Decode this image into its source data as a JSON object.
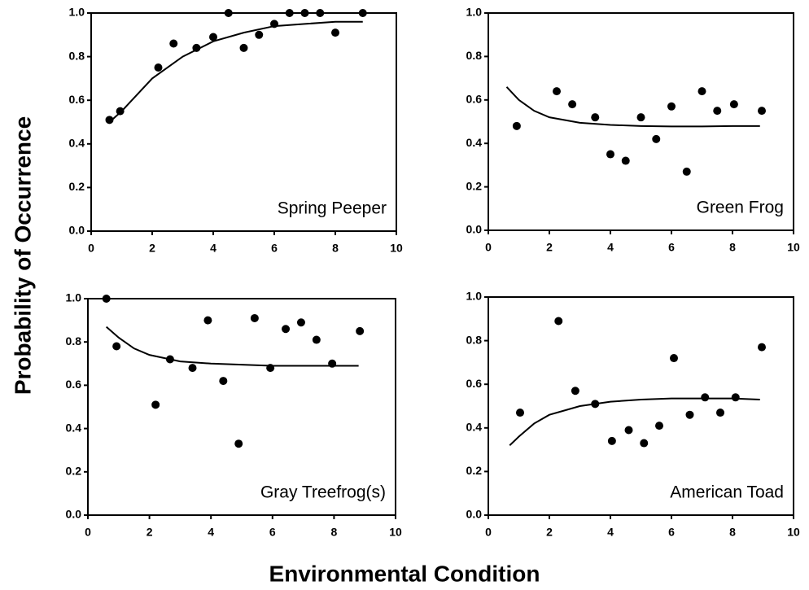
{
  "ylabel": "Probability of Occurrence",
  "xlabel": "Environmental Condition",
  "chart_data": [
    {
      "type": "scatter",
      "title": "Spring Peeper",
      "xlim": [
        0,
        10
      ],
      "ylim": [
        0,
        1
      ],
      "xticks": [
        0,
        2,
        4,
        6,
        8,
        10
      ],
      "yticks": [
        {
          "value": 0,
          "label": "0.0"
        },
        0.2,
        0.4,
        0.6,
        0.8,
        {
          "value": 1,
          "label": "1.0"
        }
      ],
      "series": [
        {
          "type": "scatter",
          "color": "#000000",
          "x": [
            0.6,
            0.95,
            2.2,
            2.7,
            3.45,
            4.0,
            4.5,
            5.0,
            5.5,
            6.0,
            6.5,
            7.0,
            7.5,
            8.0,
            8.9
          ],
          "values": [
            0.51,
            0.55,
            0.75,
            0.86,
            0.84,
            0.89,
            1.0,
            0.84,
            0.9,
            0.95,
            1.0,
            1.0,
            1.0,
            0.91,
            1.0
          ]
        },
        {
          "type": "line",
          "color": "#000000",
          "x": [
            0.6,
            1,
            2,
            3,
            4,
            5,
            6,
            7,
            8,
            8.9
          ],
          "values": [
            0.5,
            0.55,
            0.7,
            0.8,
            0.87,
            0.91,
            0.94,
            0.95,
            0.96,
            0.96
          ]
        }
      ]
    },
    {
      "type": "scatter",
      "title": "Green Frog",
      "xlim": [
        0,
        10
      ],
      "ylim": [
        0,
        1
      ],
      "xticks": [
        0,
        2,
        4,
        6,
        8,
        10
      ],
      "yticks": [
        {
          "value": 0,
          "label": "0.0"
        },
        0.2,
        0.4,
        0.6,
        0.8,
        {
          "value": 1,
          "label": "1.0"
        }
      ],
      "series": [
        {
          "type": "scatter",
          "color": "#000000",
          "x": [
            0.93,
            2.24,
            2.75,
            3.5,
            4.0,
            4.5,
            5.0,
            5.5,
            6.0,
            6.5,
            7.0,
            7.5,
            8.05,
            8.96
          ],
          "values": [
            0.48,
            0.64,
            0.58,
            0.52,
            0.35,
            0.32,
            0.52,
            0.42,
            0.57,
            0.27,
            0.64,
            0.55,
            0.58,
            0.55
          ]
        },
        {
          "type": "line",
          "color": "#000000",
          "x": [
            0.6,
            1,
            1.5,
            2,
            3,
            4,
            5,
            6,
            7,
            8,
            8.9
          ],
          "values": [
            0.66,
            0.6,
            0.55,
            0.52,
            0.495,
            0.485,
            0.48,
            0.478,
            0.478,
            0.48,
            0.48
          ]
        }
      ]
    },
    {
      "type": "scatter",
      "title": "Gray Treefrog(s)",
      "xlim": [
        0,
        10
      ],
      "ylim": [
        0,
        1
      ],
      "xticks": [
        0,
        2,
        4,
        6,
        8,
        10
      ],
      "yticks": [
        {
          "value": 0,
          "label": "0.0"
        },
        0.2,
        0.4,
        0.6,
        0.8,
        {
          "value": 1,
          "label": "1.0"
        }
      ],
      "series": [
        {
          "type": "scatter",
          "color": "#000000",
          "x": [
            0.6,
            0.93,
            2.2,
            2.67,
            3.4,
            3.9,
            4.4,
            4.9,
            5.42,
            5.93,
            6.43,
            6.93,
            7.43,
            7.94,
            8.84
          ],
          "values": [
            1.0,
            0.78,
            0.51,
            0.72,
            0.68,
            0.9,
            0.62,
            0.33,
            0.91,
            0.68,
            0.86,
            0.89,
            0.81,
            0.7,
            0.85
          ]
        },
        {
          "type": "line",
          "color": "#000000",
          "x": [
            0.6,
            1,
            1.5,
            2,
            3,
            4,
            5,
            6,
            7,
            8,
            8.8
          ],
          "values": [
            0.87,
            0.82,
            0.77,
            0.74,
            0.71,
            0.7,
            0.695,
            0.69,
            0.69,
            0.69,
            0.69
          ]
        }
      ]
    },
    {
      "type": "scatter",
      "title": "American Toad",
      "xlim": [
        0,
        10
      ],
      "ylim": [
        0,
        1
      ],
      "xticks": [
        0,
        2,
        4,
        6,
        8,
        10
      ],
      "yticks": [
        {
          "value": 0,
          "label": "0.0"
        },
        0.2,
        0.4,
        0.6,
        0.8,
        {
          "value": 1,
          "label": "1.0"
        }
      ],
      "series": [
        {
          "type": "scatter",
          "color": "#000000",
          "x": [
            1.04,
            2.3,
            2.85,
            3.5,
            4.05,
            4.6,
            5.1,
            5.6,
            6.08,
            6.6,
            7.1,
            7.6,
            8.1,
            8.96
          ],
          "values": [
            0.47,
            0.89,
            0.57,
            0.51,
            0.34,
            0.39,
            0.33,
            0.41,
            0.72,
            0.46,
            0.54,
            0.47,
            0.54,
            0.77
          ]
        },
        {
          "type": "line",
          "color": "#000000",
          "x": [
            0.7,
            1,
            1.5,
            2,
            3,
            4,
            5,
            6,
            7,
            8,
            8.9
          ],
          "values": [
            0.32,
            0.36,
            0.42,
            0.46,
            0.5,
            0.52,
            0.53,
            0.535,
            0.535,
            0.535,
            0.53
          ]
        }
      ]
    }
  ]
}
